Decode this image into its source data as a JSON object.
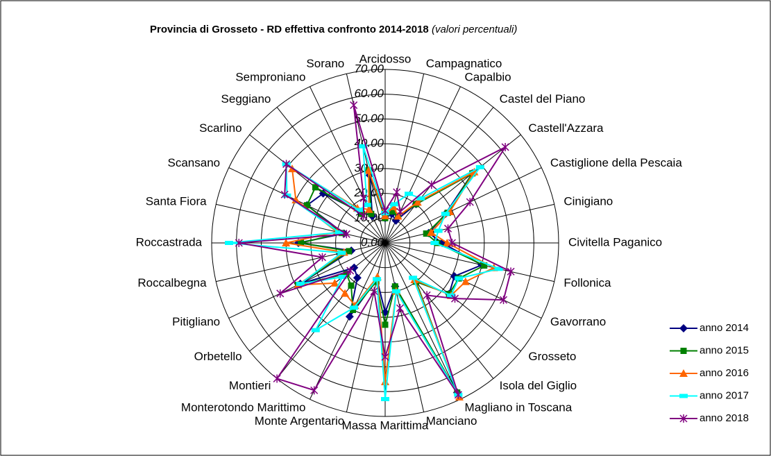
{
  "chart_data": {
    "type": "radar",
    "title": "Provincia di Grosseto  -  RD effettiva confronto 2014-2018",
    "subtitle": "(valori percentuali)",
    "categories": [
      "Arcidosso",
      "Campagnatico",
      "Capalbio",
      "Castel del Piano",
      "Castell'Azzara",
      "Castiglione della Pescaia",
      "Cinigiano",
      "Civitella Paganico",
      "Follonica",
      "Gavorrano",
      "Grosseto",
      "Isola del Giglio",
      "Magliano in Toscana",
      "Manciano",
      "Massa Marittima",
      "Monte Argentario",
      "Monterotondo Marittimo",
      "Montieri",
      "Orbetello",
      "Pitigliano",
      "Roccalbegna",
      "Roccastrada",
      "Santa Fiora",
      "Scansano",
      "Scarlino",
      "Seggiano",
      "Semproniano",
      "Sorano"
    ],
    "ylim": [
      0,
      70
    ],
    "yticks": [
      {
        "value": 0,
        "label": "0.00"
      },
      {
        "value": 10,
        "label": "10.00"
      },
      {
        "value": 20,
        "label": "20.00"
      },
      {
        "value": 30,
        "label": "30.00"
      },
      {
        "value": 40,
        "label": "40.00"
      },
      {
        "value": 50,
        "label": "50.00"
      },
      {
        "value": 60,
        "label": "60.00"
      },
      {
        "value": 70,
        "label": "70.00"
      }
    ],
    "grid": true,
    "legend": "right",
    "series": [
      {
        "name": "anno 2014",
        "color": "#000080",
        "marker": "diamond",
        "values": [
          10,
          12,
          10,
          20,
          45,
          27,
          18,
          23,
          40,
          31,
          33,
          20,
          67,
          18,
          28,
          15,
          33,
          18,
          16,
          38,
          14,
          35,
          17,
          35,
          32,
          16,
          12,
          28
        ]
      },
      {
        "name": "anno 2015",
        "color": "#008000",
        "marker": "square",
        "values": [
          10,
          13,
          12,
          20,
          45,
          28,
          17,
          21,
          41,
          33,
          33,
          20,
          67,
          18,
          33,
          16,
          30,
          22,
          20,
          39,
          15,
          34,
          18,
          35,
          36,
          15,
          13,
          30
        ]
      },
      {
        "name": "anno 2016",
        "color": "#ff6600",
        "marker": "triangle",
        "values": [
          11,
          15,
          12,
          21,
          46,
          29,
          19,
          25,
          45,
          36,
          34,
          19,
          69,
          20,
          56,
          14,
          28,
          26,
          26,
          39,
          17,
          40,
          20,
          40,
          48,
          18,
          15,
          30
        ]
      },
      {
        "name": "anno 2017",
        "color": "#00ffff",
        "marker": "bar",
        "values": [
          12,
          16,
          22,
          23,
          49,
          27,
          22,
          20,
          47,
          33,
          34,
          18,
          68,
          20,
          63,
          15,
          29,
          45,
          22,
          38,
          18,
          63,
          19,
          44,
          51,
          17,
          17,
          40
        ]
      },
      {
        "name": "anno 2018",
        "color": "#800080",
        "marker": "star",
        "values": [
          13,
          21,
          14,
          30,
          62,
          38,
          26,
          27,
          52,
          53,
          36,
          27,
          68,
          27,
          46,
          20,
          66,
          70,
          18,
          47,
          26,
          59,
          16,
          45,
          51,
          14,
          20,
          57
        ]
      }
    ]
  }
}
